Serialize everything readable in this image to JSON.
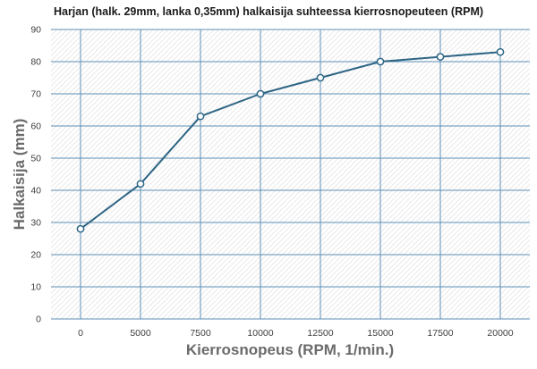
{
  "chart_data": {
    "type": "line",
    "title": "Harjan (halk. 29mm, lanka 0,35mm) halkaisija suhteessa kierrosnopeuteen (RPM)",
    "xlabel": "Kierrosnopeus (RPM, 1/min.)",
    "ylabel": "Halkaisija (mm)",
    "x": [
      0,
      5000,
      7500,
      10000,
      12500,
      15000,
      17500,
      20000
    ],
    "series": [
      {
        "values": [
          28,
          42,
          63,
          70,
          75,
          80,
          81.5,
          83
        ]
      }
    ],
    "xticks": [
      "0",
      "5000",
      "7500",
      "10000",
      "12500",
      "15000",
      "17500",
      "20000"
    ],
    "yticks": [
      "0",
      "10",
      "20",
      "30",
      "40",
      "50",
      "60",
      "70",
      "80",
      "90"
    ],
    "ylim": [
      0,
      90
    ],
    "x_scale": "categorical",
    "grid": true,
    "background": "hatched",
    "legend": "none",
    "colors": {
      "line": "#2e6585",
      "marker_fill": "#ffffff",
      "grid": "#5d8fb5",
      "hatch": "#e3e3e3"
    }
  }
}
